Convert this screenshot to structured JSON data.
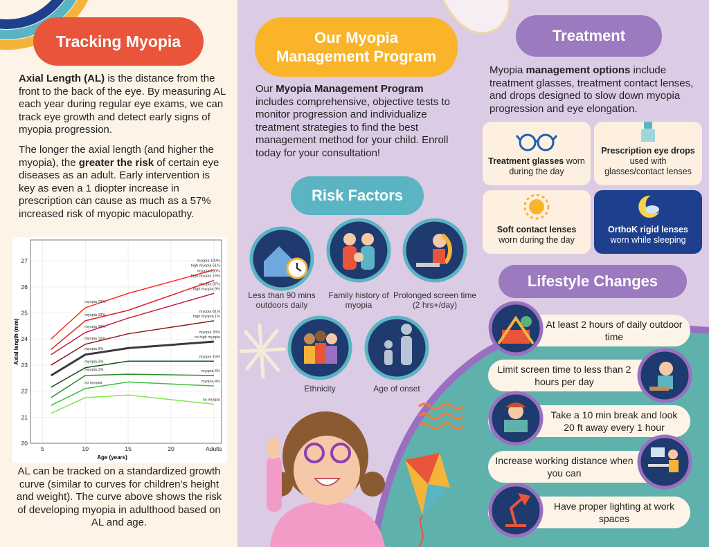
{
  "tracking": {
    "title": "Tracking Myopia",
    "paragraphs": [
      [
        {
          "text": "Axial Length (AL)",
          "bold": true
        },
        {
          "text": " is the distance from the front to the back of the eye. By measuring AL each year during regular eye exams, we can track eye growth and detect early signs of myopia progression.",
          "bold": false
        }
      ],
      [
        {
          "text": "The longer the axial length (and higher the myopia), the ",
          "bold": false
        },
        {
          "text": "greater the risk",
          "bold": true
        },
        {
          "text": " of certain eye diseases as an adult. Early intervention is key as even a 1 diopter increase in prescription can cause as much as a 57% increased risk of myopic maculopathy.",
          "bold": false
        }
      ]
    ],
    "caption": "AL can be tracked on a standardized growth curve (similar to curves for children’s height and weight). The curve above shows the risk of developing myopia in adulthood based on AL and age."
  },
  "chart_data": {
    "type": "line",
    "xlabel": "Age (years)",
    "ylabel": "Axial length (mm)",
    "x": [
      6,
      10,
      15,
      25
    ],
    "xlim": [
      3.6,
      25.9
    ],
    "xticks": [
      5,
      10,
      15,
      20,
      {
        "value": 25,
        "label": "Adults"
      }
    ],
    "ylim": [
      20,
      27.8
    ],
    "yticks": [
      20,
      21,
      22,
      23,
      24,
      25,
      26,
      27
    ],
    "grid": true,
    "series": [
      {
        "color": "#ff2a1a",
        "width": 1.5,
        "values": [
          24.0,
          25.2,
          25.75,
          26.65
        ],
        "start_label": [
          "myopia 73%"
        ],
        "end_label": [
          "myopia 100%",
          "high myopia 51%"
        ]
      },
      {
        "color": "#e0211f",
        "width": 1.5,
        "values": [
          23.6,
          24.7,
          25.1,
          26.25
        ],
        "start_label": [
          "myopia 33%"
        ],
        "end_label": [
          "myopia 100%",
          "high myopia 16%"
        ]
      },
      {
        "color": "#c41d3a",
        "width": 1.5,
        "values": [
          23.4,
          24.25,
          24.8,
          25.75
        ],
        "start_label": [
          "myopia 29%"
        ],
        "end_label": [
          "myopia 87%",
          "high myopia 9%"
        ]
      },
      {
        "color": "#8a1a1a",
        "width": 1.5,
        "values": [
          23.0,
          23.8,
          24.2,
          24.7
        ],
        "start_label": [
          "myopia 12%"
        ],
        "end_label": [
          "myopia 61%",
          "high myopia 1%"
        ]
      },
      {
        "color": "#3a3a3a",
        "width": 3,
        "values": [
          22.6,
          23.4,
          23.65,
          23.9
        ],
        "start_label": [
          "myopia 6%"
        ],
        "end_label": [
          "myopia 33%",
          "no high myopia"
        ]
      },
      {
        "color": "#145214",
        "width": 1.5,
        "values": [
          22.15,
          22.9,
          23.15,
          23.15
        ],
        "start_label": [
          "myopia 2%"
        ],
        "end_label": [
          "myopia 16%"
        ]
      },
      {
        "color": "#2a8a2a",
        "width": 1.5,
        "values": [
          21.75,
          22.6,
          22.65,
          22.6
        ],
        "start_label": [
          "myopia 1%"
        ],
        "end_label": [
          "myopia 6%"
        ]
      },
      {
        "color": "#3cbf3c",
        "width": 1.5,
        "values": [
          21.45,
          22.1,
          22.35,
          22.2
        ],
        "start_label": [
          "no myopia"
        ],
        "end_label": [
          "myopia 4%"
        ]
      },
      {
        "color": "#7ee84a",
        "width": 1.5,
        "values": [
          21.15,
          21.75,
          21.85,
          21.5
        ],
        "start_label": [],
        "end_label": [
          "no myopia"
        ]
      }
    ]
  },
  "program": {
    "title": "Our Myopia Management Program",
    "paragraph": [
      {
        "text": "Our ",
        "bold": false
      },
      {
        "text": "Myopia Management Program",
        "bold": true
      },
      {
        "text": " includes comprehensive, objective tests to monitor progression and individualize treatment strategies to find the best management method for your child. Enroll today for your consultation!",
        "bold": false
      }
    ]
  },
  "risk_factors": {
    "title": "Risk Factors",
    "items": [
      "Less than 90 mins outdoors daily",
      "Family history of myopia",
      "Prolonged screen time (2 hrs+/day)",
      "Ethnicity",
      "Age of onset"
    ]
  },
  "treatment": {
    "title": "Treatment",
    "intro": [
      {
        "text": "Myopia ",
        "bold": false
      },
      {
        "text": "management options",
        "bold": true
      },
      {
        "text": " include treatment glasses, treatment contact lenses, and drops designed to slow down myopia progression and eye elongation.",
        "bold": false
      }
    ],
    "cards": [
      {
        "title": "Treatment glasses",
        "text": "worn during the day"
      },
      {
        "title": "Prescription eye drops",
        "text": "used with glasses/contact lenses"
      },
      {
        "title": "Soft contact lenses",
        "text": "worn during the day"
      },
      {
        "title": "OrthoK rigid lenses",
        "text": "worn while sleeping"
      }
    ]
  },
  "lifestyle": {
    "title": "Lifestyle Changes",
    "items": [
      "At least 2 hours of daily outdoor time",
      "Limit screen time to less than 2 hours per day",
      "Take a 10 min break and look 20 ft away every 1 hour",
      "Increase working distance when you can",
      "Have proper lighting at work spaces"
    ]
  }
}
